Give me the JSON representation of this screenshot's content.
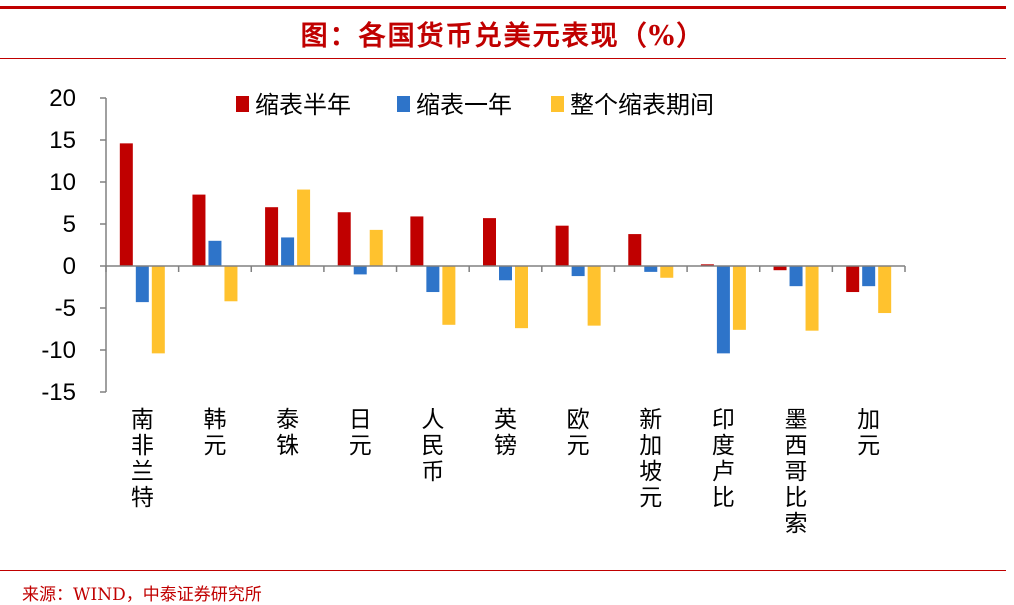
{
  "title": "图：各国货币兑美元表现（%）",
  "source": "来源：WIND，中泰证券研究所",
  "colors": {
    "red": "#c00000",
    "series1": "#c00000",
    "series2": "#2e74c9",
    "series3": "#ffc22e"
  },
  "chart_data": {
    "type": "bar",
    "title": "图：各国货币兑美元表现（%）",
    "xlabel": "",
    "ylabel": "",
    "ylim": [
      -15,
      20
    ],
    "yticks": [
      "20",
      "15",
      "10",
      "5",
      "0",
      "-5",
      "-10",
      "-15"
    ],
    "grid": false,
    "legend_position": "top",
    "categories": [
      "南非兰特",
      "韩元",
      "泰铢",
      "日元",
      "人民币",
      "英镑",
      "欧元",
      "新加坡元",
      "印度卢比",
      "墨西哥比索",
      "加元"
    ],
    "series": [
      {
        "name": "缩表半年",
        "values": [
          14.6,
          8.5,
          7.0,
          6.4,
          5.9,
          5.7,
          4.8,
          3.8,
          0.2,
          -0.5,
          -3.1
        ]
      },
      {
        "name": "缩表一年",
        "values": [
          -4.3,
          3.0,
          3.4,
          -1.0,
          -3.1,
          -1.7,
          -1.2,
          -0.7,
          -10.4,
          -2.4,
          -2.4
        ]
      },
      {
        "name": "整个缩表期间",
        "values": [
          -10.4,
          -4.2,
          9.1,
          4.3,
          -7.0,
          -7.4,
          -7.1,
          -1.4,
          -7.6,
          -7.7,
          -5.6
        ]
      }
    ]
  }
}
